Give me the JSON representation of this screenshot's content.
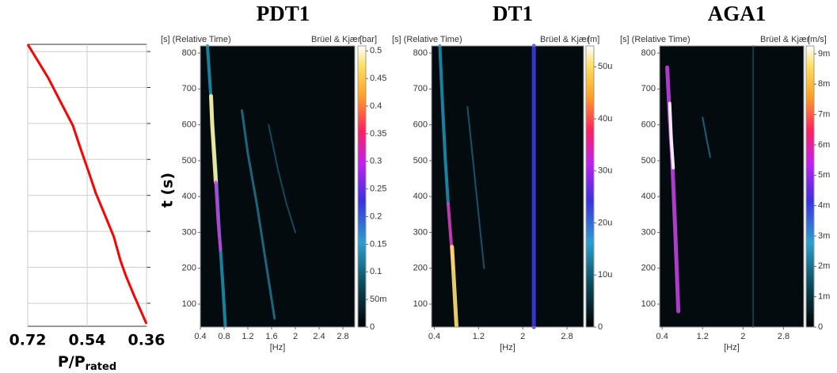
{
  "chart_data": [
    {
      "type": "line",
      "x": [
        0.72,
        0.658,
        0.621,
        0.583,
        0.559,
        0.534,
        0.514,
        0.489,
        0.459,
        0.439,
        0.422,
        0.397,
        0.36
      ],
      "values": [
        820,
        727,
        661,
        594,
        528,
        462,
        407,
        352,
        285,
        219,
        175,
        120,
        43
      ],
      "color": "#ff0000",
      "xlim": [
        0.72,
        0.36
      ],
      "xticks": [
        0.72,
        0.54,
        0.36
      ],
      "ylim": [
        36,
        820
      ],
      "yticks": [
        100,
        200,
        300,
        400,
        500,
        600,
        700,
        800
      ],
      "grid": true,
      "xlabel": "P/P",
      "xlabel_subscript": "rated",
      "ylabel": "t (s)"
    },
    {
      "type": "spectrogram",
      "title": "PDT1",
      "time_label": "[s] (Relative Time)",
      "brand": "Brüel & Kjær",
      "unit": "[bar]",
      "xlabel": "[Hz]",
      "xlim": [
        0.4,
        3
      ],
      "xticks": [
        0.4,
        0.8,
        1.2,
        1.6,
        2,
        2.4,
        2.8
      ],
      "ylim": [
        36,
        820
      ],
      "yticks": [
        100,
        200,
        300,
        400,
        500,
        600,
        700,
        800
      ],
      "colorbar_lim": [
        0,
        0.509
      ],
      "colorbar_ticks": [
        0,
        {
          "value": 0.05,
          "label": "50m"
        },
        0.1,
        0.15,
        0.2,
        0.25,
        0.3,
        0.35,
        0.4,
        0.45,
        0.5
      ],
      "traces": [
        {
          "x": [
            0.52,
            0.56,
            0.6,
            0.66,
            0.72,
            0.78,
            0.82
          ],
          "y": [
            820,
            720,
            620,
            480,
            300,
            150,
            40
          ],
          "color": "#1a8fb0",
          "width": 4
        },
        {
          "x": [
            0.58,
            0.6,
            0.63,
            0.66
          ],
          "y": [
            680,
            600,
            520,
            440
          ],
          "color": "#fff3a0",
          "width": 5
        },
        {
          "x": [
            0.66,
            0.7,
            0.74
          ],
          "y": [
            440,
            330,
            250
          ],
          "color": "#c040e0",
          "width": 4
        },
        {
          "x": [
            1.1,
            1.2,
            1.35,
            1.5,
            1.65
          ],
          "y": [
            640,
            520,
            380,
            220,
            60
          ],
          "color": "#1f6f8a",
          "width": 3
        },
        {
          "x": [
            1.55,
            1.7,
            1.85,
            2
          ],
          "y": [
            600,
            480,
            380,
            300
          ],
          "color": "#174f60",
          "width": 2
        }
      ]
    },
    {
      "type": "spectrogram",
      "title": "DT1",
      "time_label": "[s] (Relative Time)",
      "brand": "Brüel & Kjær",
      "unit": "[m]",
      "xlabel": "[Hz]",
      "xlim": [
        0.35,
        3.1
      ],
      "xticks": [
        0.4,
        1.2,
        2,
        2.8
      ],
      "ylim": [
        36,
        820
      ],
      "yticks": [
        100,
        200,
        300,
        400,
        500,
        600,
        700,
        800
      ],
      "colorbar_lim": [
        0,
        5.4e-05
      ],
      "colorbar_ticks": [
        0,
        {
          "value": 1e-05,
          "label": "10u"
        },
        {
          "value": 2e-05,
          "label": "20u"
        },
        {
          "value": 3e-05,
          "label": "30u"
        },
        {
          "value": 4e-05,
          "label": "40u"
        },
        {
          "value": 5e-05,
          "label": "50u"
        }
      ],
      "traces": [
        {
          "x": [
            0.5,
            0.55,
            0.6,
            0.65
          ],
          "y": [
            820,
            650,
            500,
            380
          ],
          "color": "#1a8fb0",
          "width": 4
        },
        {
          "x": [
            0.65,
            0.7,
            0.74
          ],
          "y": [
            380,
            280,
            200
          ],
          "color": "#d040c0",
          "width": 4
        },
        {
          "x": [
            0.72,
            0.76,
            0.8
          ],
          "y": [
            260,
            150,
            40
          ],
          "color": "#ffe070",
          "width": 5
        },
        {
          "x": [
            2.2,
            2.2
          ],
          "y": [
            36,
            820
          ],
          "color": "#3a3ae0",
          "width": 5
        },
        {
          "x": [
            1,
            1.1,
            1.2,
            1.3
          ],
          "y": [
            650,
            500,
            350,
            200
          ],
          "color": "#1a5a70",
          "width": 2
        }
      ]
    },
    {
      "type": "spectrogram",
      "title": "AGA1",
      "time_label": "[s] (Relative Time)",
      "brand": "Brüel & Kjær",
      "unit": "[m/s]",
      "xlabel": "[Hz]",
      "xlim": [
        0.35,
        3.2
      ],
      "xticks": [
        0.4,
        1.2,
        2,
        2.8
      ],
      "ylim": [
        36,
        820
      ],
      "yticks": [
        100,
        200,
        300,
        400,
        500,
        600,
        700,
        800
      ],
      "colorbar_lim": [
        0,
        0.00926
      ],
      "colorbar_ticks": [
        0,
        {
          "value": 0.001,
          "label": "1m"
        },
        {
          "value": 0.002,
          "label": "2m"
        },
        {
          "value": 0.003,
          "label": "3m"
        },
        {
          "value": 0.004,
          "label": "4m"
        },
        {
          "value": 0.005,
          "label": "5m"
        },
        {
          "value": 0.006,
          "label": "6m"
        },
        {
          "value": 0.007,
          "label": "7m"
        },
        {
          "value": 0.008,
          "label": "8m"
        },
        {
          "value": 0.009,
          "label": "9m"
        }
      ],
      "traces": [
        {
          "x": [
            0.5,
            0.55,
            0.6,
            0.66,
            0.72
          ],
          "y": [
            760,
            620,
            500,
            300,
            80
          ],
          "color": "#c040e0",
          "width": 5
        },
        {
          "x": [
            0.55,
            0.58,
            0.62
          ],
          "y": [
            660,
            560,
            480
          ],
          "color": "#ffffff",
          "width": 4
        },
        {
          "x": [
            2.2,
            2.2
          ],
          "y": [
            36,
            820
          ],
          "color": "#1a4050",
          "width": 2
        },
        {
          "x": [
            1.2,
            1.28,
            1.35
          ],
          "y": [
            620,
            560,
            510
          ],
          "color": "#1a6a80",
          "width": 2
        }
      ]
    }
  ]
}
